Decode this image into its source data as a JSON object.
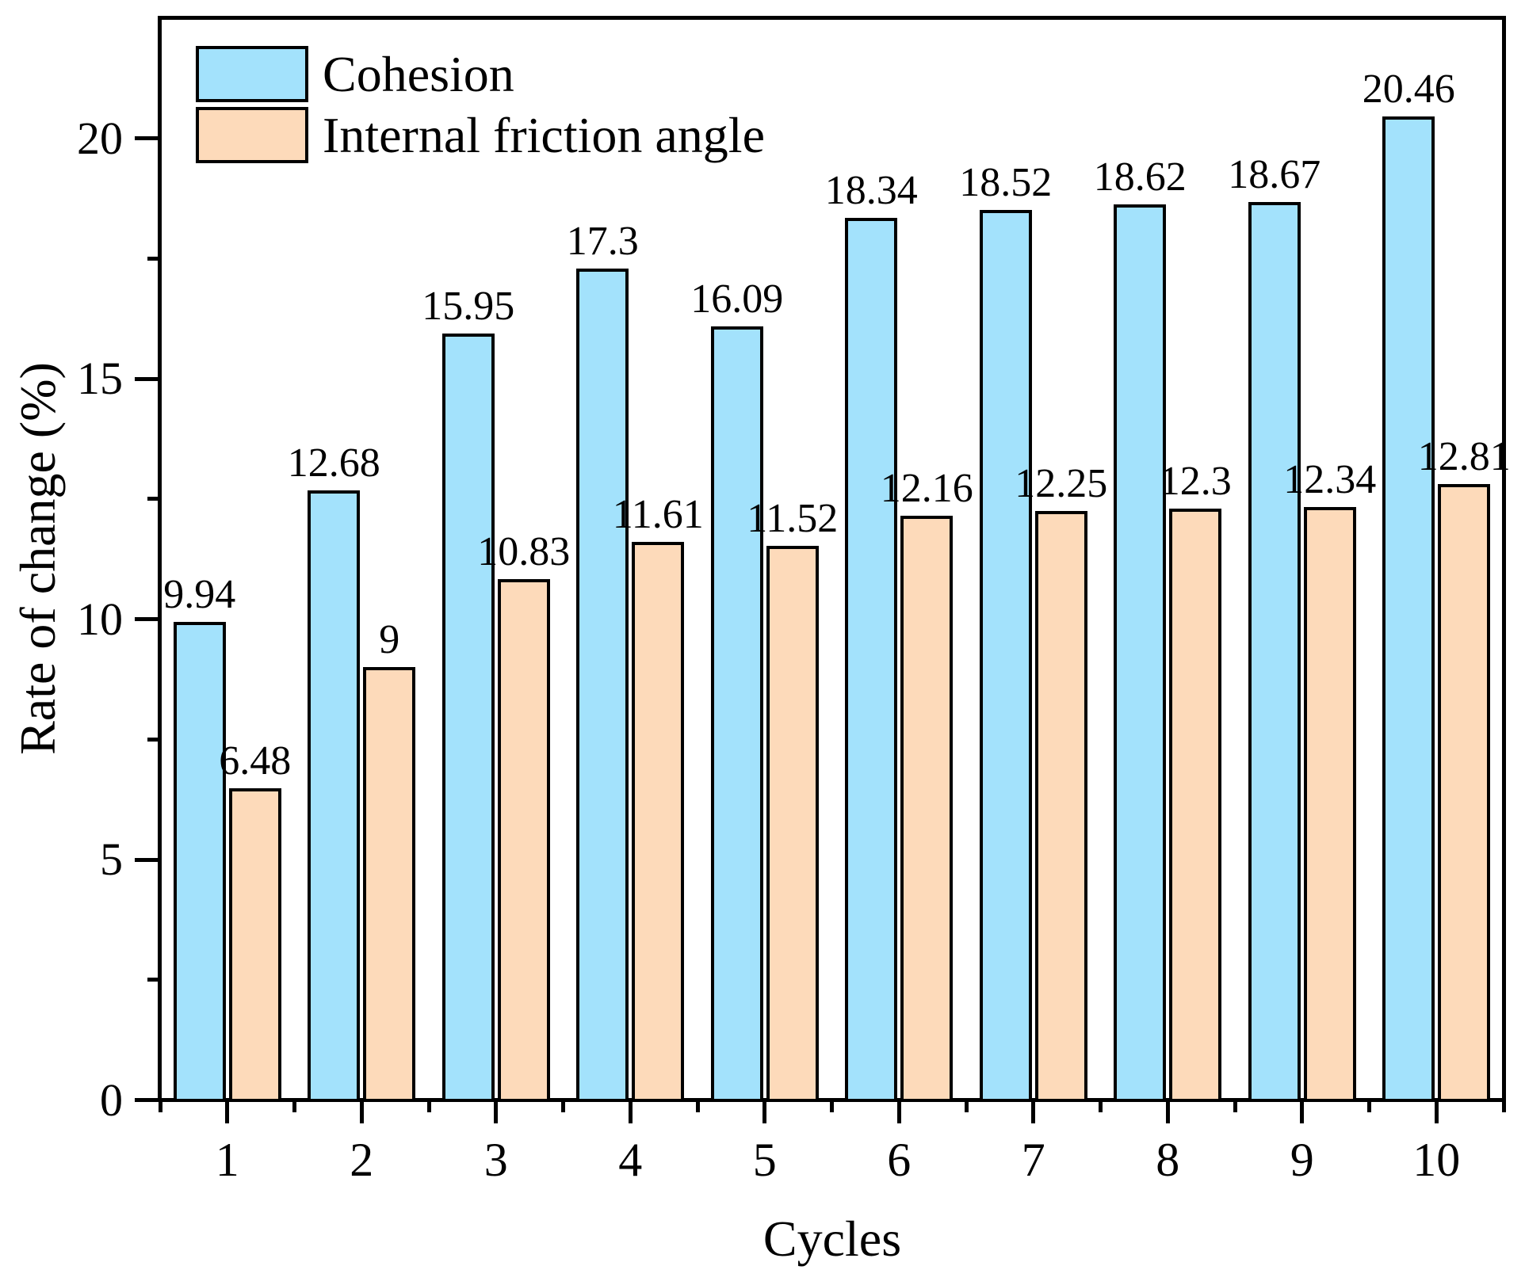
{
  "chart_data": {
    "type": "bar",
    "title": "",
    "xlabel": "Cycles",
    "ylabel": "Rate of change (%)",
    "categories": [
      "1",
      "2",
      "3",
      "4",
      "5",
      "6",
      "7",
      "8",
      "9",
      "10"
    ],
    "series": [
      {
        "name": "Cohesion",
        "color": "#A3E2FC",
        "values": [
          9.94,
          12.68,
          15.95,
          17.3,
          16.09,
          18.34,
          18.52,
          18.62,
          18.67,
          20.46
        ],
        "data_labels": [
          "9.94",
          "12.68",
          "15.95",
          "17.3",
          "16.09",
          "18.34",
          "18.52",
          "18.62",
          "18.67",
          "20.46"
        ]
      },
      {
        "name": "Internal friction angle",
        "color": "#FDDABA",
        "values": [
          6.48,
          9,
          10.83,
          11.61,
          11.52,
          12.16,
          12.25,
          12.3,
          12.34,
          12.81
        ],
        "data_labels": [
          "6.48",
          "9",
          "10.83",
          "11.61",
          "11.52",
          "12.16",
          "12.25",
          "12.3",
          "12.34",
          "12.81"
        ]
      }
    ],
    "ylim": [
      0,
      22.5
    ],
    "ytick_labels": [
      "0",
      "5",
      "10",
      "15",
      "20"
    ],
    "ytick_values": [
      0,
      5,
      10,
      15,
      20
    ],
    "minor_ytick_values": [
      2.5,
      7.5,
      12.5,
      17.5
    ],
    "bar_edge_color": "#000000",
    "frame_color": "#000000",
    "grid": false,
    "legend_position": "top-left",
    "legend_entries": [
      "Cohesion",
      "Internal friction angle"
    ]
  }
}
